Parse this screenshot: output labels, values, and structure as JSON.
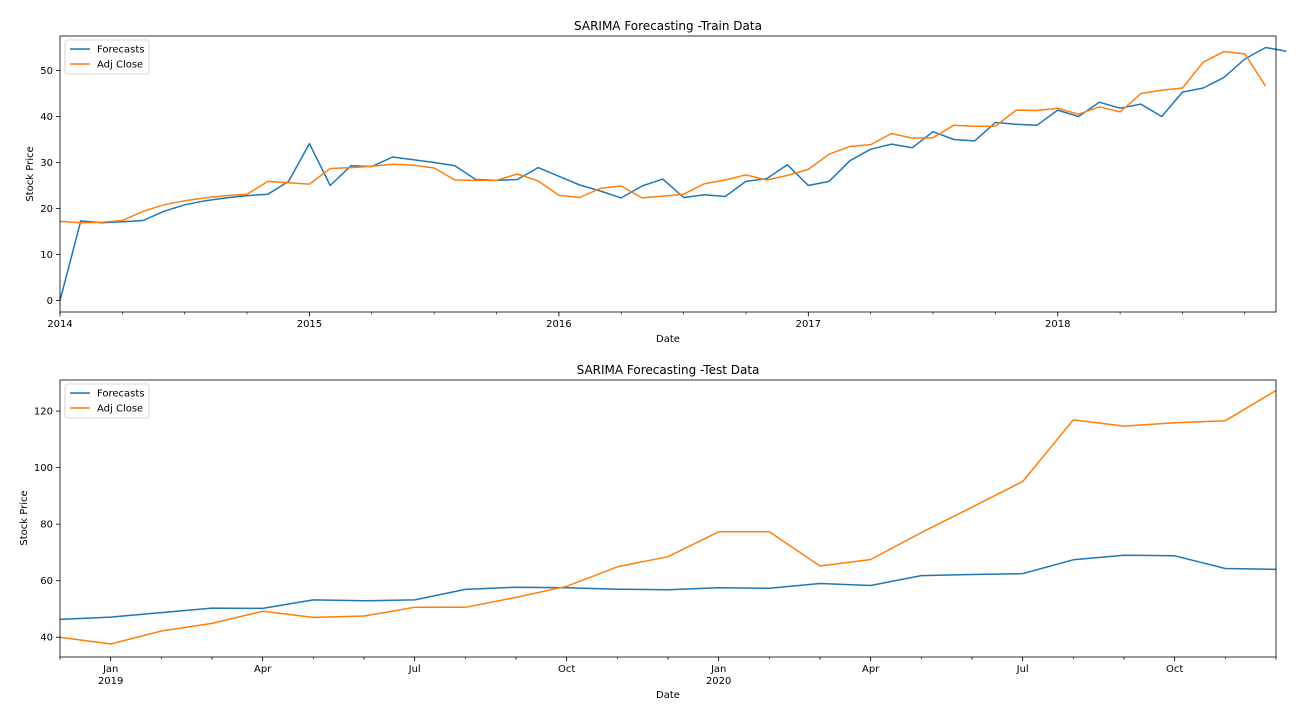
{
  "chart_data": [
    {
      "type": "line",
      "title": "SARIMA Forecasting -Train Data",
      "xlabel": "Date",
      "ylabel": "Stock Price",
      "x_axis": {
        "kind": "monthly",
        "start": "2014-01",
        "end": "2018-12"
      },
      "ylim": [
        -2.5,
        57.5
      ],
      "yticks": [
        0,
        10,
        20,
        30,
        40,
        50
      ],
      "xticks": [
        {
          "label": "2014",
          "month": 0
        },
        {
          "label": "2015",
          "month": 12
        },
        {
          "label": "2016",
          "month": 24
        },
        {
          "label": "2017",
          "month": 36
        },
        {
          "label": "2018",
          "month": 48
        }
      ],
      "legend": {
        "position": "top-left",
        "entries": [
          "Forecasts",
          "Adj Close"
        ]
      },
      "grid": false,
      "series": [
        {
          "name": "Forecasts",
          "color": "#1f77b4",
          "values": [
            0.0,
            17.3,
            16.9,
            17.1,
            17.4,
            19.4,
            20.8,
            21.7,
            22.3,
            22.8,
            23.1,
            25.9,
            34.1,
            25.0,
            29.3,
            29.1,
            31.2,
            30.6,
            30.0,
            29.3,
            26.3,
            26.1,
            26.3,
            28.9,
            27.0,
            25.1,
            23.8,
            22.3,
            24.9,
            26.4,
            22.4,
            23.0,
            22.6,
            25.9,
            26.5,
            29.5,
            25.0,
            25.9,
            30.4,
            32.9,
            34.0,
            33.2,
            36.7,
            35.0,
            34.7,
            38.7,
            38.3,
            38.1,
            41.4,
            40.0,
            43.1,
            41.8,
            42.7,
            40.0,
            45.3,
            46.2,
            48.5,
            52.5,
            55.0,
            54.2
          ]
        },
        {
          "name": "Adj Close",
          "color": "#ff7f0e",
          "values": [
            17.2,
            16.9,
            17.0,
            17.4,
            19.4,
            20.8,
            21.7,
            22.3,
            22.8,
            23.1,
            25.9,
            25.6,
            25.3,
            28.7,
            28.9,
            29.2,
            29.6,
            29.4,
            28.8,
            26.2,
            26.1,
            26.1,
            27.5,
            26.0,
            22.9,
            22.4,
            24.4,
            24.9,
            22.3,
            22.7,
            23.1,
            25.4,
            26.2,
            27.3,
            26.2,
            27.2,
            28.5,
            31.8,
            33.5,
            33.9,
            36.3,
            35.3,
            35.4,
            38.1,
            37.9,
            37.9,
            41.4,
            41.3,
            41.8,
            40.5,
            42.1,
            41.0,
            45.0,
            45.7,
            46.2,
            51.8,
            54.1,
            53.6,
            46.6
          ]
        }
      ]
    },
    {
      "type": "line",
      "title": "SARIMA Forecasting -Test Data",
      "xlabel": "Date",
      "ylabel": "Stock Price",
      "x_axis": {
        "kind": "monthly",
        "start": "2018-12",
        "end": "2020-12"
      },
      "ylim": [
        33,
        131
      ],
      "yticks": [
        40,
        60,
        80,
        100,
        120
      ],
      "xticks": [
        {
          "label": "Jan",
          "sublabel": "2019",
          "month": 1
        },
        {
          "label": "Apr",
          "month": 4
        },
        {
          "label": "Jul",
          "month": 7
        },
        {
          "label": "Oct",
          "month": 10
        },
        {
          "label": "Jan",
          "sublabel": "2020",
          "month": 13
        },
        {
          "label": "Apr",
          "month": 16
        },
        {
          "label": "Jul",
          "month": 19
        },
        {
          "label": "Oct",
          "month": 22
        }
      ],
      "legend": {
        "position": "top-left",
        "entries": [
          "Forecasts",
          "Adj Close"
        ]
      },
      "grid": false,
      "series": [
        {
          "name": "Forecasts",
          "color": "#1f77b4",
          "values": [
            46.3,
            47.1,
            48.7,
            50.3,
            50.2,
            53.2,
            52.9,
            53.2,
            56.9,
            57.7,
            57.5,
            57.0,
            56.8,
            57.5,
            57.3,
            59.0,
            58.3,
            61.8,
            62.2,
            62.5,
            67.4,
            69.0,
            68.8,
            64.3,
            64.0
          ]
        },
        {
          "name": "Adj Close",
          "color": "#ff7f0e",
          "values": [
            40.0,
            37.6,
            42.2,
            44.9,
            49.2,
            47.0,
            47.5,
            50.6,
            50.6,
            54.1,
            58.0,
            64.9,
            68.5,
            77.3,
            77.3,
            65.2,
            67.5,
            77.0,
            86.0,
            95.1,
            116.9,
            114.7,
            115.9,
            116.6,
            127.3
          ]
        }
      ]
    }
  ]
}
